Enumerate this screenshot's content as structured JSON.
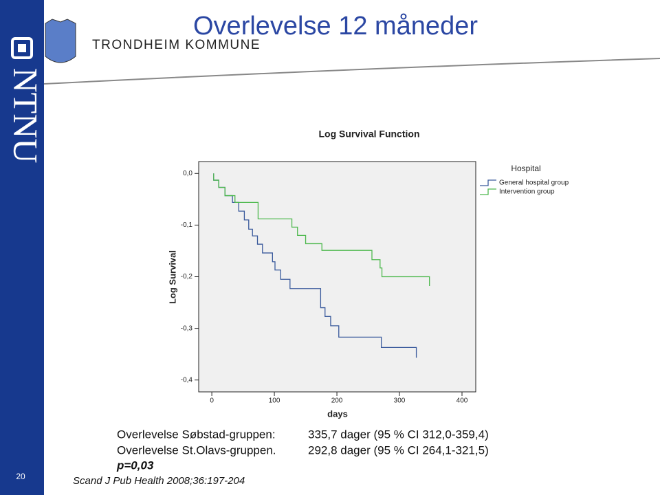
{
  "header": {
    "title": "Overlevelse 12 måneder",
    "organization": "TRONDHEIM KOMMUNE",
    "sidebar": "NTNU",
    "slide_number": "20"
  },
  "chart_data": {
    "type": "step",
    "title": "Log Survival Function",
    "x_label": "days",
    "y_label": "Log Survival",
    "legend_title": "Hospital",
    "legend_position": "top right outside",
    "xlim": [
      -21,
      422
    ],
    "ylim": [
      -0.423,
      0.023
    ],
    "xticks": [
      0,
      100,
      200,
      300,
      400
    ],
    "yticks": [
      {
        "value": 0,
        "label": "0,0"
      },
      {
        "value": -0.1,
        "label": "-0,1"
      },
      {
        "value": -0.2,
        "label": "-0,2"
      },
      {
        "value": -0.3,
        "label": "-0,3"
      },
      {
        "value": -0.4,
        "label": "-0,4"
      }
    ],
    "grid": false,
    "series": [
      {
        "name": "General hospital group",
        "color": "#3a5a9c",
        "x": [
          3,
          3,
          11,
          21,
          33,
          43,
          52,
          59,
          65,
          73,
          81,
          97,
          101,
          110,
          125,
          174,
          181,
          190,
          203,
          271,
          327
        ],
        "values": [
          0,
          -0.013,
          -0.027,
          -0.043,
          -0.056,
          -0.073,
          -0.09,
          -0.108,
          -0.121,
          -0.137,
          -0.154,
          -0.171,
          -0.187,
          -0.205,
          -0.223,
          -0.26,
          -0.277,
          -0.295,
          -0.317,
          -0.337,
          -0.357
        ]
      },
      {
        "name": "Intervention group",
        "color": "#4db84d",
        "x": [
          3,
          3,
          11,
          21,
          37,
          74,
          128,
          137,
          150,
          176,
          256,
          269,
          272,
          348
        ],
        "values": [
          0,
          -0.013,
          -0.027,
          -0.043,
          -0.056,
          -0.088,
          -0.104,
          -0.12,
          -0.136,
          -0.149,
          -0.167,
          -0.183,
          -0.2,
          -0.218
        ]
      }
    ]
  },
  "notes": {
    "rows": [
      [
        "Overlevelse Søbstad-gruppen:",
        "335,7 dager (95 % CI 312,0-359,4)"
      ],
      [
        "Overlevelse St.Olavs-gruppen.",
        "292,8 dager (95 % CI 264,1-321,5)"
      ]
    ],
    "p_value": "p=0,03",
    "citation": "Scand J Pub Health 2008;36:197-204"
  }
}
